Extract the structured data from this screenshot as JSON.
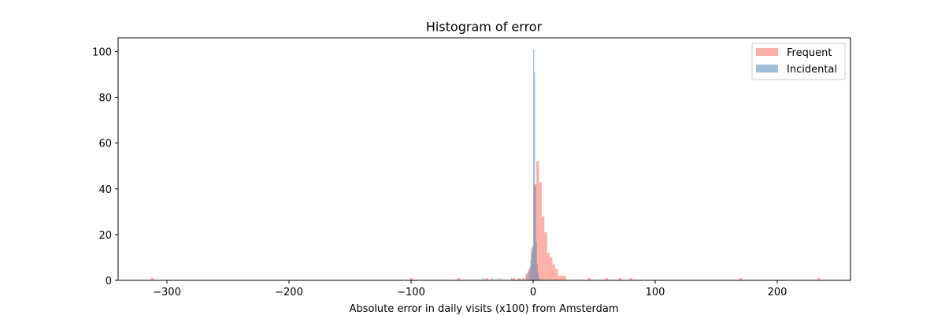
{
  "chart_data": {
    "type": "bar",
    "title": "Histogram of error",
    "xlabel": "Absolute error in daily visits (x100) from Amsterdam",
    "ylabel": "",
    "xlim": [
      -340,
      260
    ],
    "ylim": [
      0,
      106
    ],
    "xticks": [
      -300,
      -200,
      -100,
      0,
      100,
      200
    ],
    "xtick_labels": [
      "−300",
      "−200",
      "−100",
      "0",
      "100",
      "200"
    ],
    "yticks": [
      0,
      20,
      40,
      60,
      80,
      100
    ],
    "ytick_labels": [
      "0",
      "20",
      "40",
      "60",
      "80",
      "100"
    ],
    "grid": false,
    "legend_position": "top-right",
    "series": [
      {
        "name": "Frequent",
        "color": "#fa8072",
        "opacity": 0.62,
        "bin_width": 2.2,
        "bins": [
          {
            "x": -313,
            "count": 1
          },
          {
            "x": -101,
            "count": 1
          },
          {
            "x": -62,
            "count": 1
          },
          {
            "x": -39,
            "count": 1
          },
          {
            "x": -17,
            "count": 1
          },
          {
            "x": -13,
            "count": 1
          },
          {
            "x": -9,
            "count": 1
          },
          {
            "x": -6,
            "count": 3
          },
          {
            "x": -4,
            "count": 5
          },
          {
            "x": -1.8,
            "count": 14
          },
          {
            "x": 0.4,
            "count": 42
          },
          {
            "x": 2.6,
            "count": 52
          },
          {
            "x": 4.8,
            "count": 43
          },
          {
            "x": 7.0,
            "count": 28
          },
          {
            "x": 9.2,
            "count": 21
          },
          {
            "x": 11.4,
            "count": 12
          },
          {
            "x": 13.6,
            "count": 10
          },
          {
            "x": 15.8,
            "count": 7
          },
          {
            "x": 18.0,
            "count": 5
          },
          {
            "x": 20.2,
            "count": 2
          },
          {
            "x": 22.4,
            "count": 2
          },
          {
            "x": 24.6,
            "count": 2
          },
          {
            "x": 45,
            "count": 1
          },
          {
            "x": 59,
            "count": 1
          },
          {
            "x": 70,
            "count": 1
          },
          {
            "x": 79,
            "count": 1
          },
          {
            "x": 169,
            "count": 1
          },
          {
            "x": 233,
            "count": 1
          }
        ]
      },
      {
        "name": "Incidental",
        "color": "#4682b4",
        "opacity": 0.52,
        "bin_width": 0.75,
        "bins": [
          {
            "x": -41,
            "count": 1
          },
          {
            "x": -34,
            "count": 1
          },
          {
            "x": -29,
            "count": 1
          },
          {
            "x": -27,
            "count": 1
          },
          {
            "x": -18,
            "count": 1
          },
          {
            "x": -11,
            "count": 1
          },
          {
            "x": -6,
            "count": 2
          },
          {
            "x": -4.5,
            "count": 4
          },
          {
            "x": -3,
            "count": 6
          },
          {
            "x": -2.25,
            "count": 9
          },
          {
            "x": -1.5,
            "count": 12
          },
          {
            "x": -0.75,
            "count": 15
          },
          {
            "x": 0,
            "count": 101
          },
          {
            "x": 0.75,
            "count": 91
          },
          {
            "x": 1.5,
            "count": 41
          },
          {
            "x": 2.25,
            "count": 17
          },
          {
            "x": 3,
            "count": 7
          },
          {
            "x": 3.75,
            "count": 3
          },
          {
            "x": 5,
            "count": 1
          }
        ]
      }
    ]
  }
}
